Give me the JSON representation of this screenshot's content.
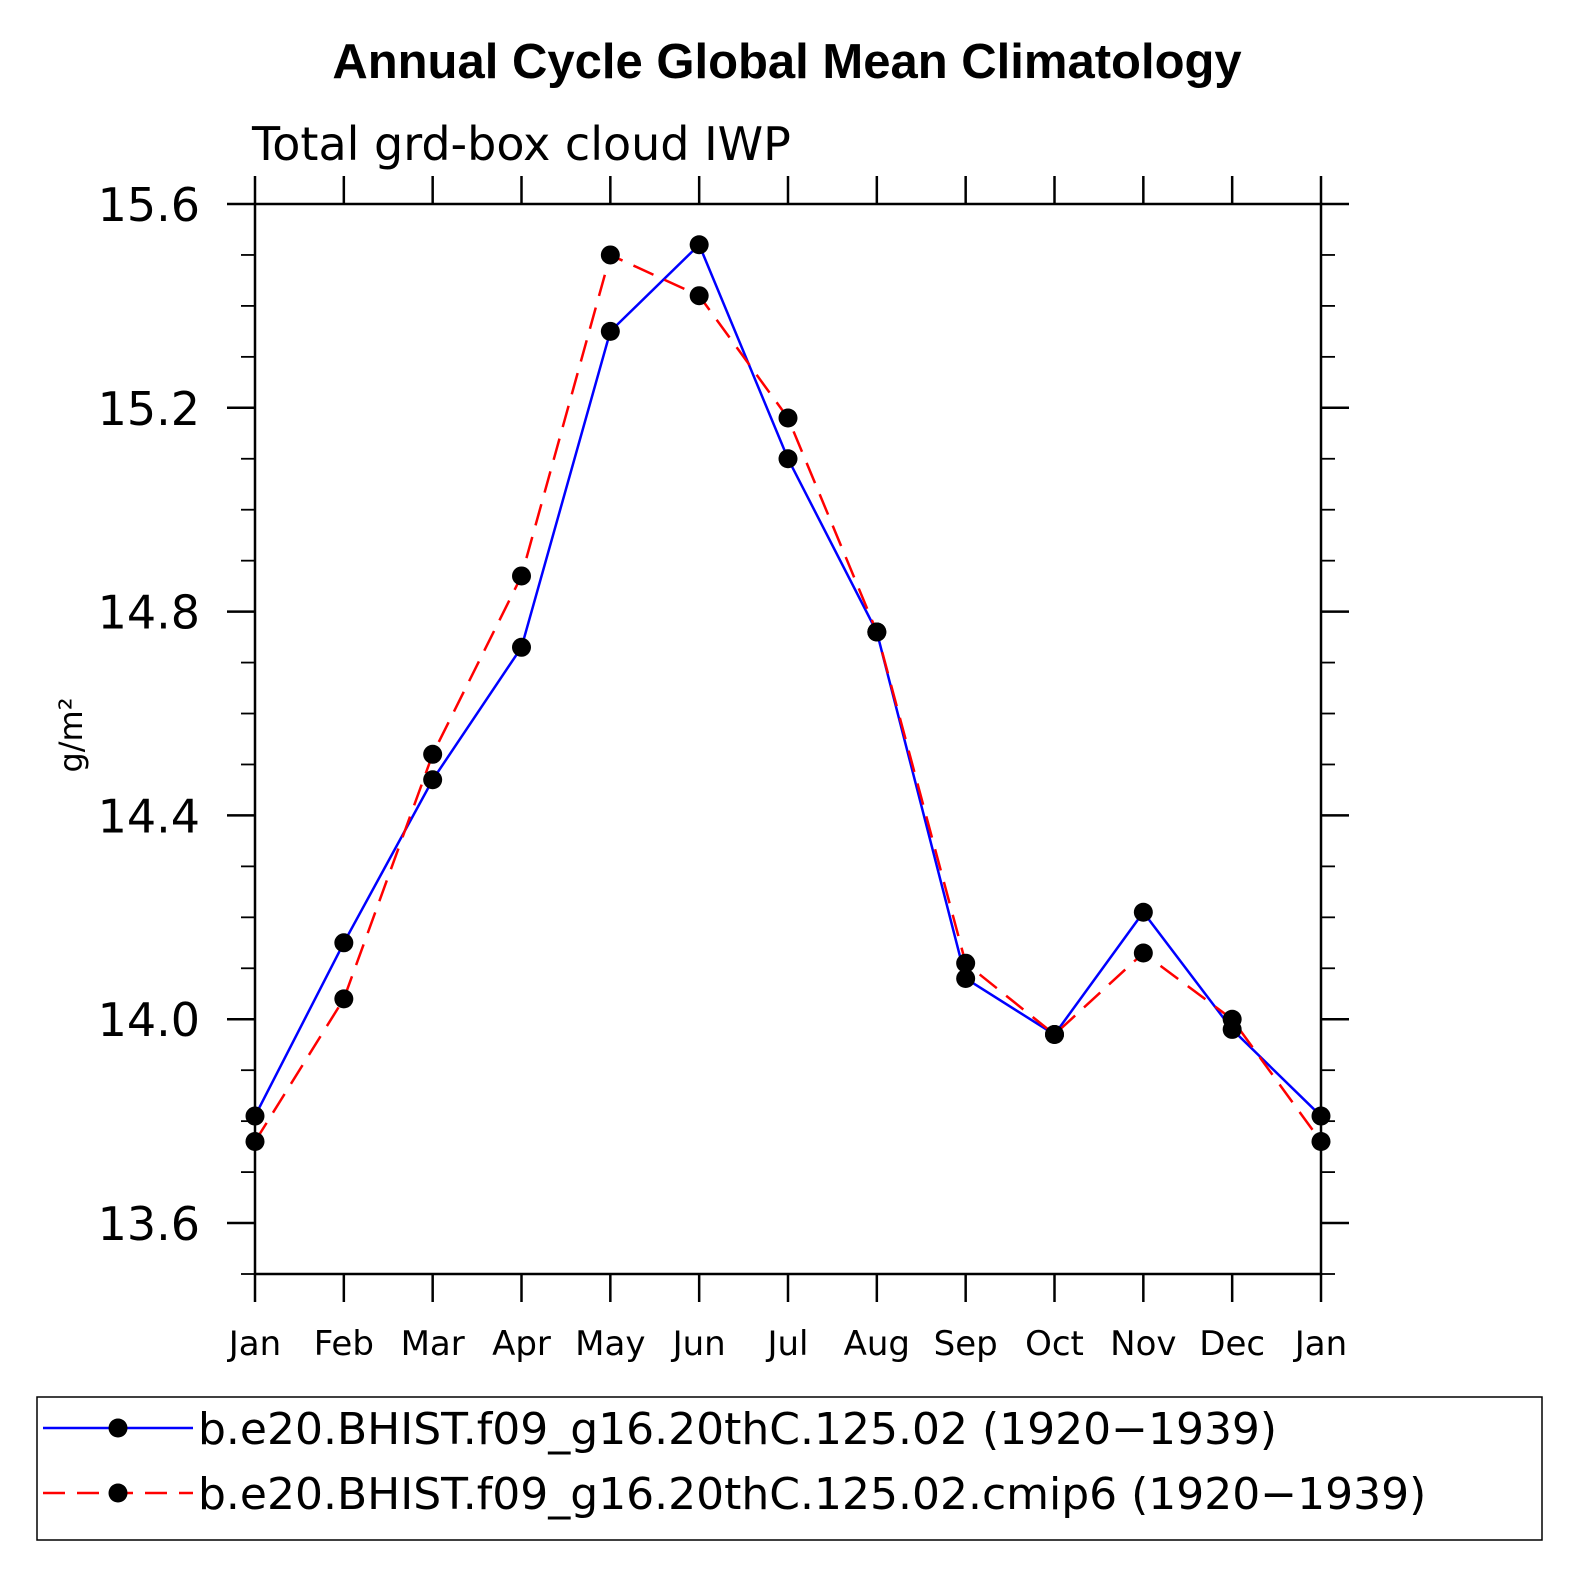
{
  "chart_data": {
    "type": "line",
    "title": "Annual Cycle Global Mean Climatology",
    "subtitle": "Total grd-box cloud IWP",
    "ylabel": "g/m²",
    "xlabel": "",
    "categories": [
      "Jan",
      "Feb",
      "Mar",
      "Apr",
      "May",
      "Jun",
      "Jul",
      "Aug",
      "Sep",
      "Oct",
      "Nov",
      "Dec",
      "Jan"
    ],
    "ylim": [
      13.5,
      15.6
    ],
    "yticks": [
      "13.6",
      "14.0",
      "14.4",
      "14.8",
      "15.2",
      "15.6"
    ],
    "ytick_values": [
      13.6,
      14.0,
      14.4,
      14.8,
      15.2,
      15.6
    ],
    "grid": false,
    "legend_position": "bottom",
    "series": [
      {
        "name": "b.e20.BHIST.f09_g16.20thC.125.02 (1920−1939)",
        "color": "#0000ff",
        "dash": "solid",
        "marker": "circle",
        "values": [
          13.81,
          14.15,
          14.47,
          14.73,
          15.35,
          15.52,
          15.1,
          14.76,
          14.08,
          13.97,
          14.21,
          13.98,
          13.81
        ]
      },
      {
        "name": "b.e20.BHIST.f09_g16.20thC.125.02.cmip6 (1920−1939)",
        "color": "#ff0000",
        "dash": "dashed",
        "marker": "circle",
        "values": [
          13.76,
          14.04,
          14.52,
          14.87,
          15.5,
          15.42,
          15.18,
          14.76,
          14.11,
          13.97,
          14.13,
          14.0,
          13.76
        ]
      }
    ]
  }
}
